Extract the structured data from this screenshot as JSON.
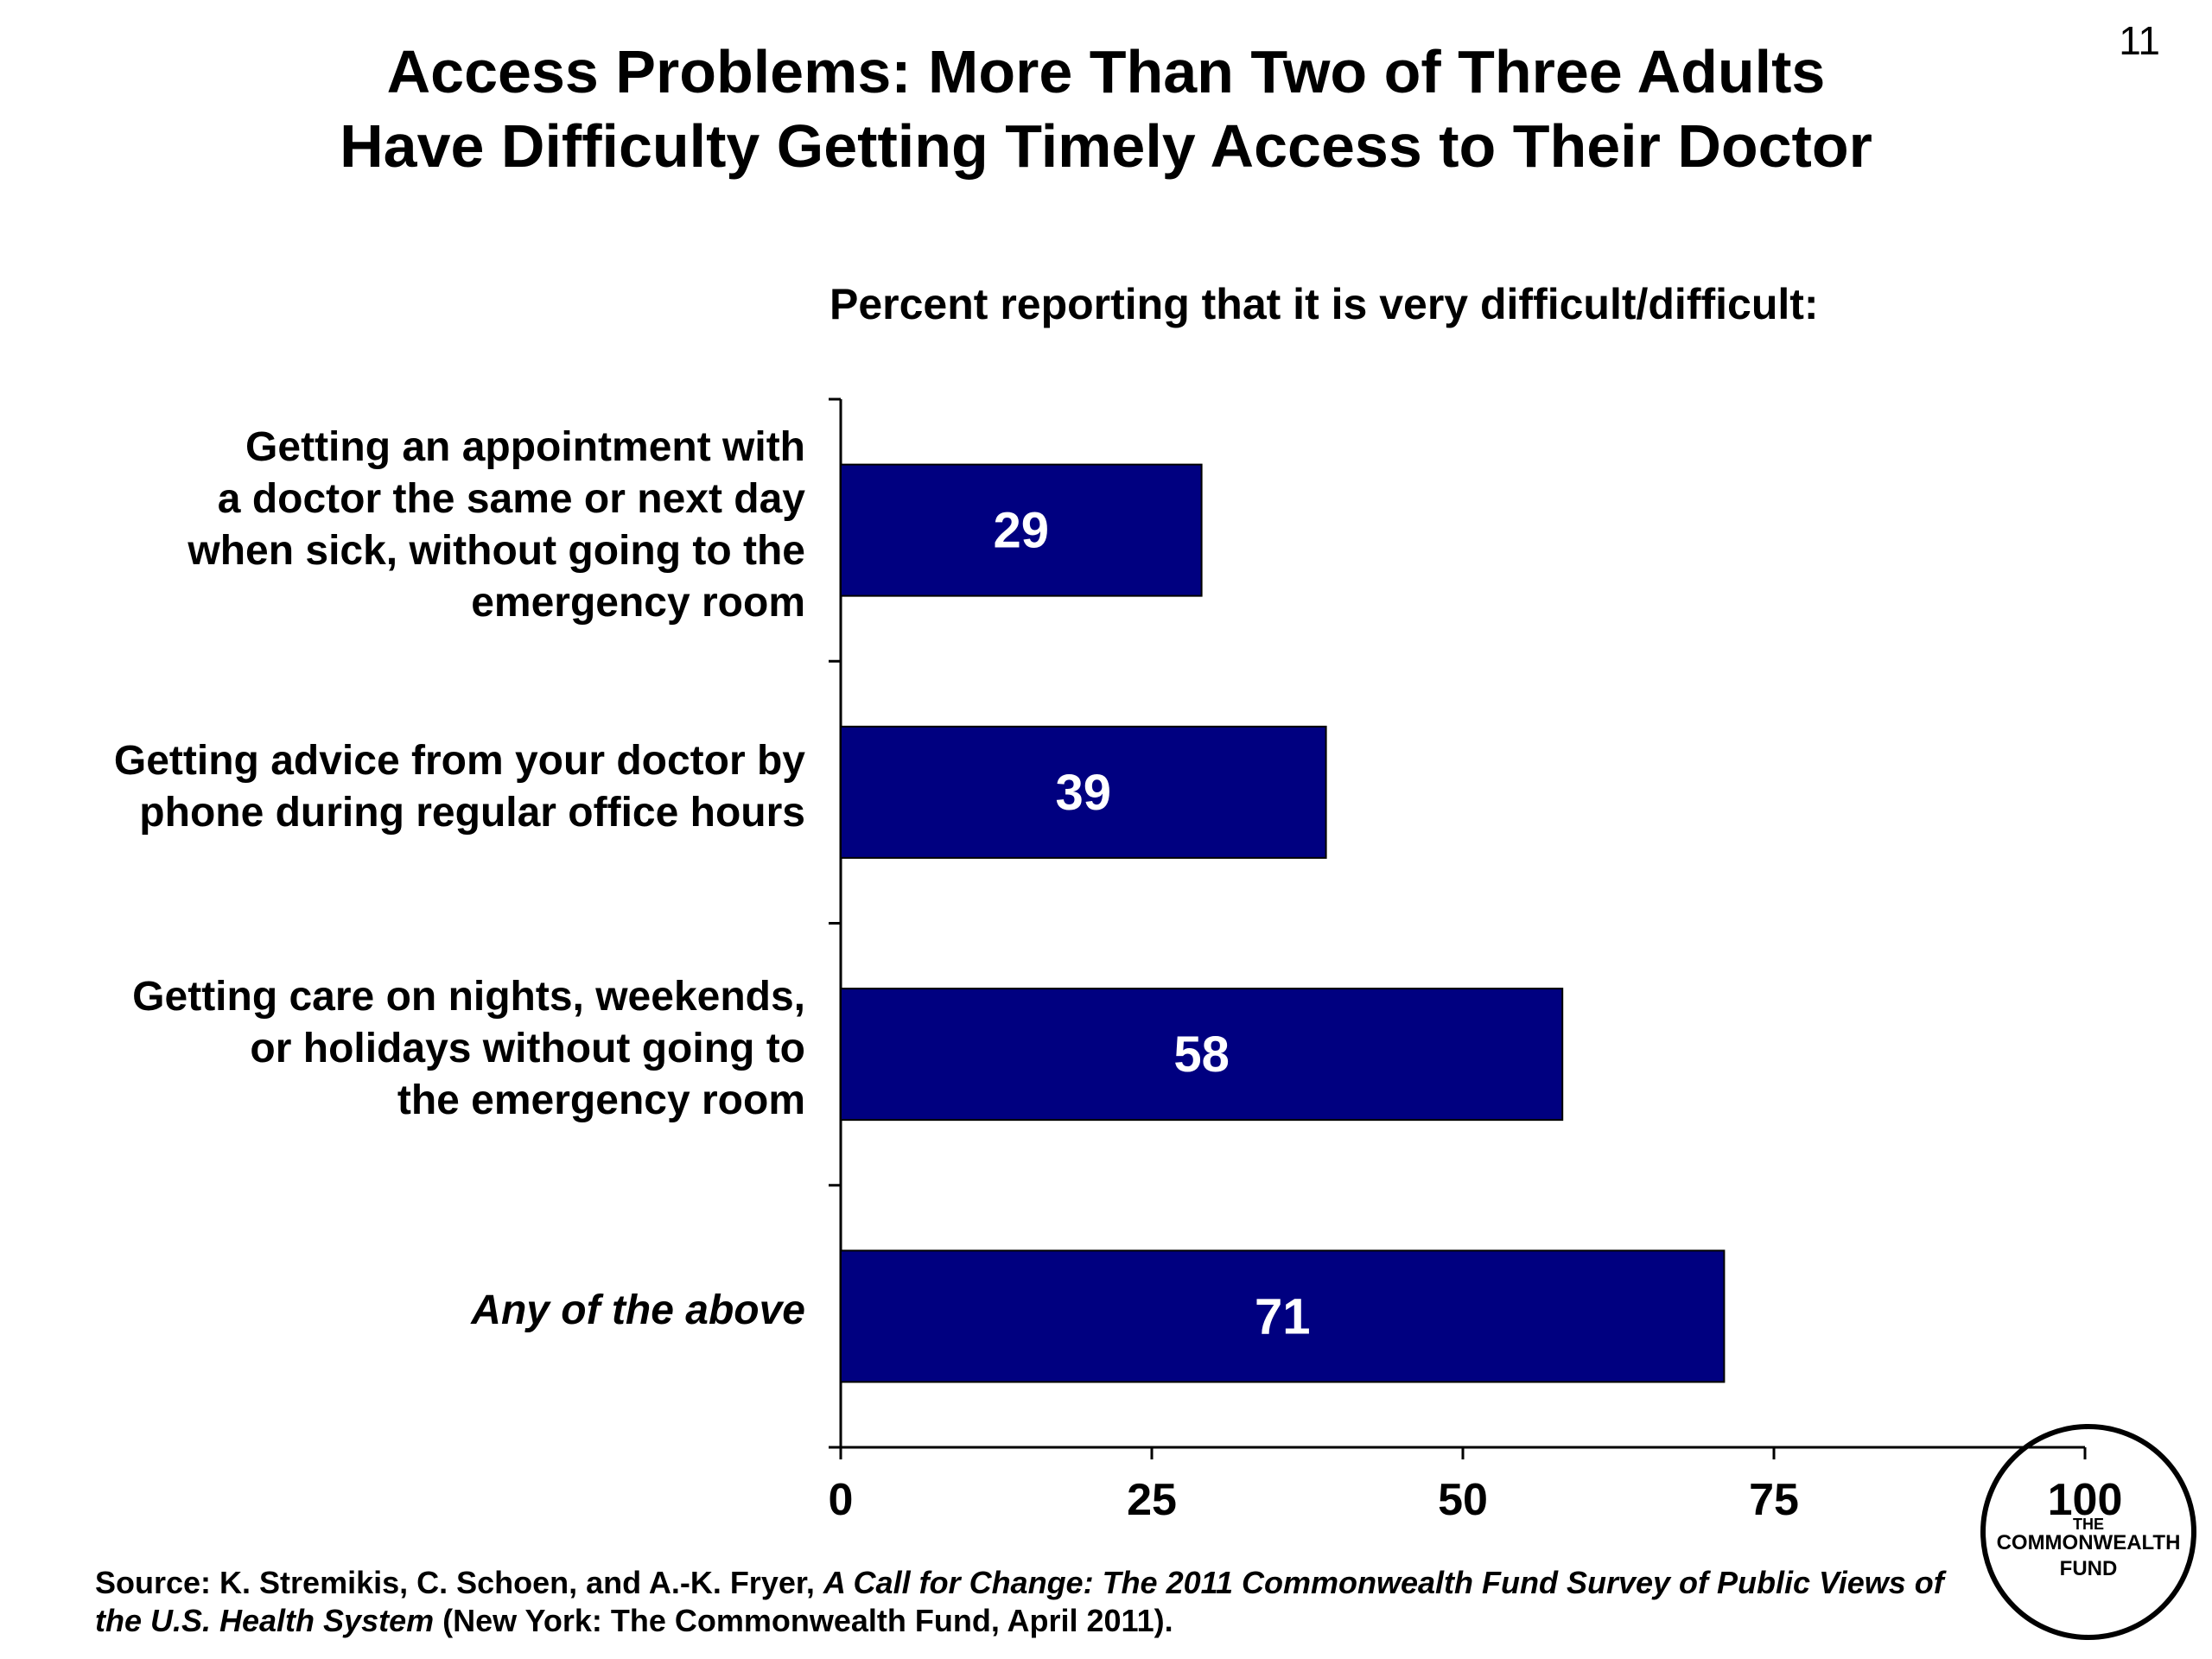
{
  "slide_number": "11",
  "title": {
    "line1": "Access Problems: More Than Two of Three Adults",
    "line2": "Have Difficulty Getting Timely Access to Their Doctor"
  },
  "subtitle": "Percent reporting that it is very difficult/difficult:",
  "category_labels": [
    {
      "lines": [
        "Getting an appointment with",
        "a doctor the same or next day",
        "when sick, without going to the",
        "emergency room"
      ]
    },
    {
      "lines": [
        "Getting advice from your doctor by",
        "phone during regular office hours"
      ]
    },
    {
      "lines": [
        "Getting care on nights, weekends,",
        "or holidays without going to",
        "the emergency room"
      ]
    },
    {
      "lines": [
        "Any of the above"
      ],
      "italic": true
    }
  ],
  "chart_data": {
    "type": "bar",
    "orientation": "horizontal",
    "categories": [
      "Getting an appointment with a doctor the same or next day when sick, without going to the emergency room",
      "Getting advice from your doctor by phone during regular office hours",
      "Getting care on nights, weekends, or holidays without going to the emergency room",
      "Any of the above"
    ],
    "values": [
      29,
      39,
      58,
      71
    ],
    "data_labels": [
      "29",
      "39",
      "58",
      "71"
    ],
    "title": "Percent reporting that it is very difficult/difficult:",
    "xlabel": "",
    "ylabel": "",
    "xlim": [
      0,
      100
    ],
    "x_ticks": [
      0,
      25,
      50,
      75,
      100
    ],
    "x_tick_labels": [
      "0",
      "25",
      "50",
      "75",
      "100"
    ],
    "grid": false,
    "legend": "none",
    "bar_color": "#000080",
    "data_label_color": "#ffffff"
  },
  "source": {
    "prefix": "Source: K. Stremikis, C. Schoen, and A.-K. Fryer, ",
    "italic": "A Call for Change: The 2011 Commonwealth Fund Survey of Public Views of the U.S. Health System",
    "suffix": " (New York: The Commonwealth Fund, April 2011)."
  },
  "logo": {
    "line1": "THE",
    "line2": "COMMONWEALTH",
    "line3": "FUND"
  }
}
